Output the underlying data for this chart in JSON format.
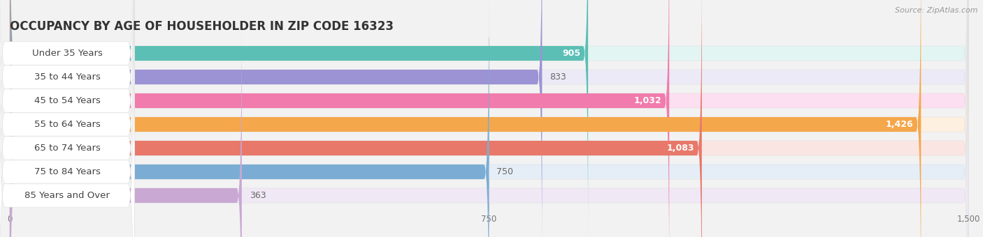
{
  "title": "OCCUPANCY BY AGE OF HOUSEHOLDER IN ZIP CODE 16323",
  "source": "Source: ZipAtlas.com",
  "categories": [
    "Under 35 Years",
    "35 to 44 Years",
    "45 to 54 Years",
    "55 to 64 Years",
    "65 to 74 Years",
    "75 to 84 Years",
    "85 Years and Over"
  ],
  "values": [
    905,
    833,
    1032,
    1426,
    1083,
    750,
    363
  ],
  "bar_colors": [
    "#5BBFB5",
    "#9B93D4",
    "#F07BAC",
    "#F5A74B",
    "#E8786A",
    "#7BADD4",
    "#C9A8D4"
  ],
  "bar_bg_colors": [
    "#E2F5F3",
    "#ECEAF7",
    "#FCDFF0",
    "#FEF0E0",
    "#FAE5E3",
    "#E5EEF7",
    "#F0E8F5"
  ],
  "value_inside": [
    true,
    false,
    true,
    true,
    true,
    false,
    false
  ],
  "xlim": [
    0,
    1500
  ],
  "xticks": [
    0,
    750,
    1500
  ],
  "background_color": "#F2F2F2",
  "title_fontsize": 12,
  "label_fontsize": 9.5,
  "value_fontsize": 9
}
